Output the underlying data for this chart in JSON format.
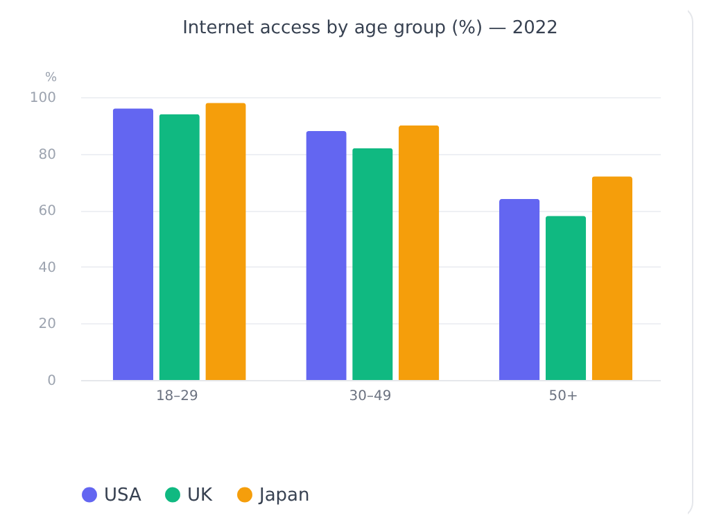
{
  "chart_data": {
    "type": "bar",
    "title": "Internet access by age group (%) — 2022",
    "ylabel": "%",
    "categories": [
      "18–29",
      "30–49",
      "50+"
    ],
    "series": [
      {
        "name": "USA",
        "color": "#6366f1",
        "values": [
          96,
          88,
          64
        ]
      },
      {
        "name": "UK",
        "color": "#10b981",
        "values": [
          94,
          82,
          58
        ]
      },
      {
        "name": "Japan",
        "color": "#f59e0b",
        "values": [
          98,
          90,
          72
        ]
      }
    ],
    "ylim": [
      0,
      100
    ],
    "yticks": [
      0,
      20,
      40,
      60,
      80,
      100
    ],
    "grid": "y",
    "legend": "bottom"
  }
}
